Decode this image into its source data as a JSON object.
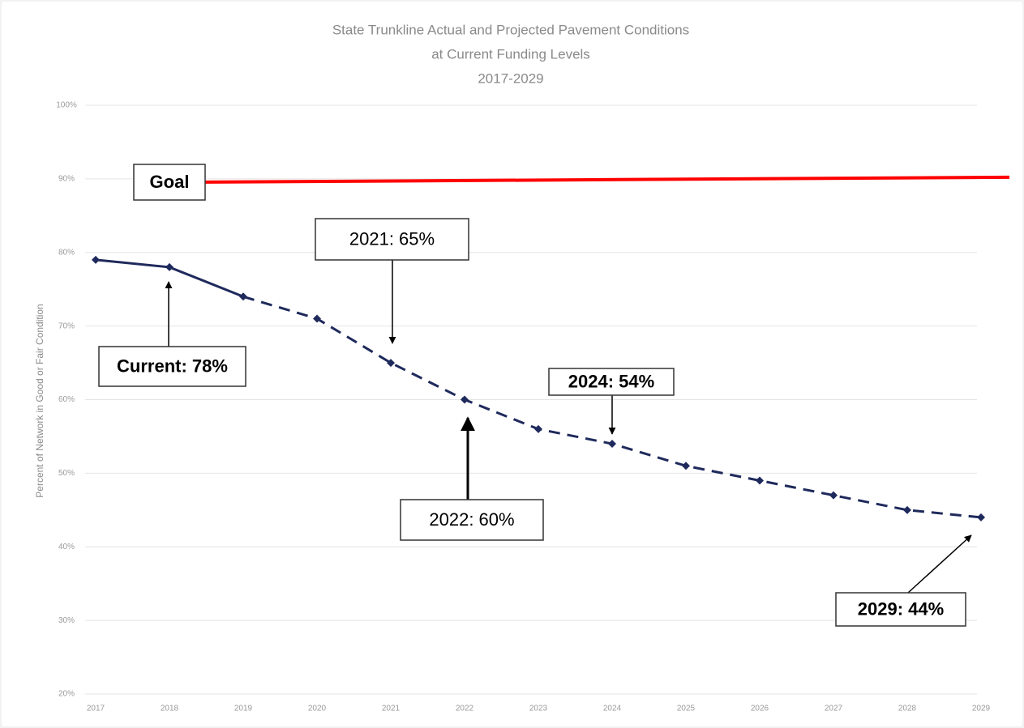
{
  "chart_data": {
    "type": "line",
    "title": [
      "State Trunkline Actual and Projected Pavement Conditions",
      "at Current Funding Levels",
      "2017-2029"
    ],
    "y_label": "Percent of Network in Good or Fair Condition",
    "categories": [
      "2017",
      "2018",
      "2019",
      "2020",
      "2021",
      "2022",
      "2023",
      "2024",
      "2025",
      "2026",
      "2027",
      "2028",
      "2029"
    ],
    "series": [
      {
        "color": "#1f2a5c",
        "dashed": false,
        "values": [
          79,
          78,
          74,
          null,
          null,
          null,
          null,
          null,
          null,
          null,
          null,
          null,
          null
        ]
      },
      {
        "color": "#1f2a5c",
        "dashed": true,
        "values": [
          null,
          null,
          74,
          71,
          65,
          60,
          56,
          54,
          51,
          49,
          47,
          45,
          44
        ]
      }
    ],
    "goal": {
      "label": "Goal",
      "value": 90,
      "color": "#ff0000"
    },
    "annotations": [
      "Current: 78%",
      "2021: 65%",
      "2022: 60%",
      "2024: 54%",
      "2029: 44%"
    ],
    "ylim": [
      20,
      100
    ],
    "yticks": [
      {
        "value": 20,
        "label": "20%"
      },
      {
        "value": 30,
        "label": "30%"
      },
      {
        "value": 40,
        "label": "40%"
      },
      {
        "value": 50,
        "label": "50%"
      },
      {
        "value": 60,
        "label": "60%"
      },
      {
        "value": 70,
        "label": "70%"
      },
      {
        "value": 80,
        "label": "80%"
      },
      {
        "value": 90,
        "label": "90%"
      },
      {
        "value": 100,
        "label": "100%"
      }
    ],
    "grid": true
  }
}
